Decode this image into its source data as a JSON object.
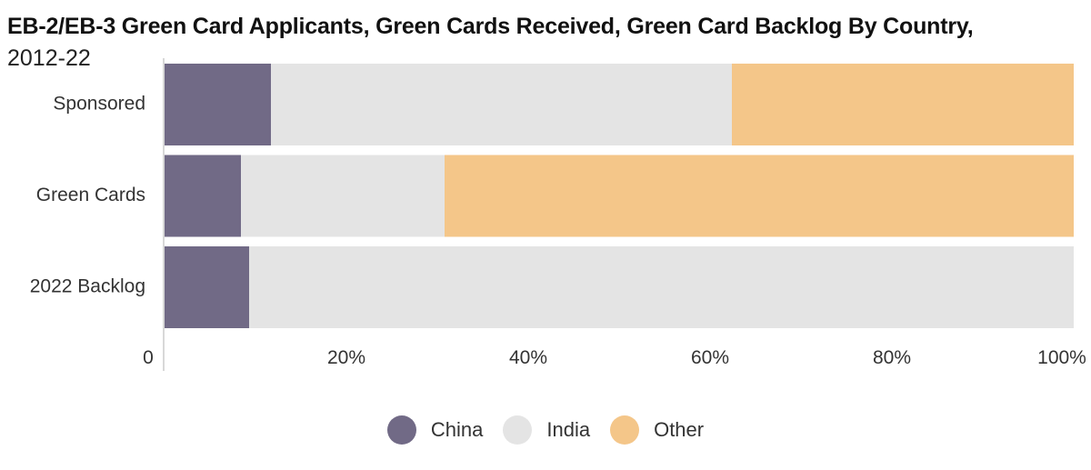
{
  "chart_data": {
    "type": "bar",
    "orientation": "horizontal",
    "stacked": true,
    "title": "EB-2/EB-3 Green Card Applicants, Green Cards Received, Green Card Backlog By Country,",
    "subtitle": "2012-22",
    "categories": [
      "Sponsored",
      "Green Cards",
      "2022 Backlog"
    ],
    "series": [
      {
        "name": "China",
        "color": "#716a86",
        "values": [
          11.7,
          8.4,
          9.3
        ]
      },
      {
        "name": "India",
        "color": "#e4e4e4",
        "values": [
          50.7,
          22.4,
          90.7
        ]
      },
      {
        "name": "Other",
        "color": "#f4c689",
        "values": [
          37.6,
          69.2,
          0
        ]
      }
    ],
    "x_ticks": [
      "0",
      "20%",
      "40%",
      "60%",
      "80%",
      "100%"
    ],
    "x_tick_values": [
      0,
      20,
      40,
      60,
      80,
      100
    ],
    "xlim": [
      0,
      100
    ],
    "grid": false,
    "legend_position": "bottom"
  }
}
